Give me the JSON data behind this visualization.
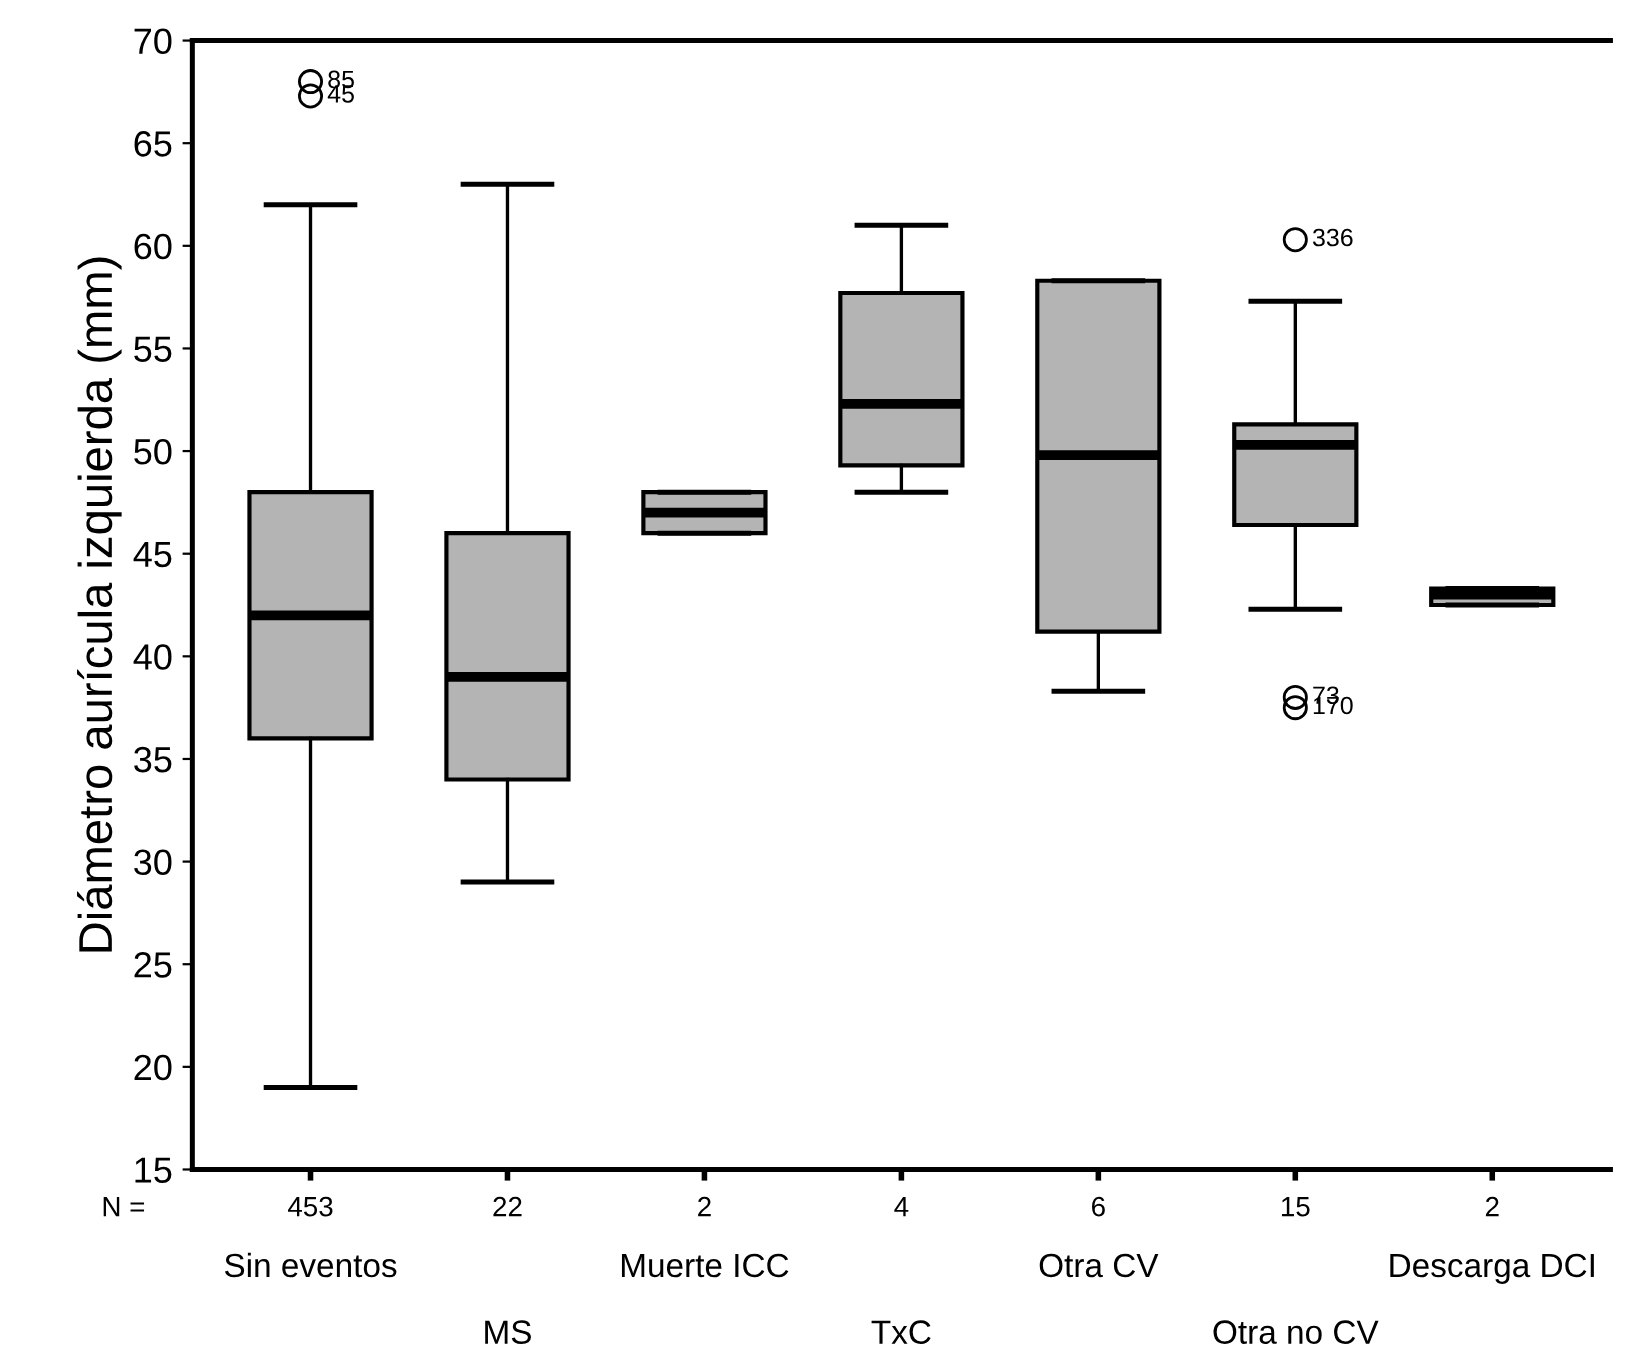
{
  "chart_data": {
    "type": "box",
    "ylabel": "Diámetro aurícula izquierda (mm)",
    "categories": [
      "Sin eventos",
      "MS",
      "Muerte ICC",
      "TxC",
      "Otra CV",
      "Otra no CV",
      "Descarga DCI"
    ],
    "boxes": [
      {
        "low": 19,
        "q1": 36,
        "median": 42,
        "q3": 48,
        "high": 62,
        "outliers": [
          68,
          67.3
        ]
      },
      {
        "low": 29,
        "q1": 34,
        "median": 39,
        "q3": 46,
        "high": 63
      },
      {
        "low": 46,
        "q1": 46,
        "median": 47,
        "q3": 48,
        "high": 48
      },
      {
        "low": 48,
        "q1": 49.3,
        "median": 52.3,
        "q3": 57.7,
        "high": 61
      },
      {
        "low": 38.3,
        "q1": 41.2,
        "median": 49.8,
        "q3": 58.3,
        "high": 58.3
      },
      {
        "low": 42.3,
        "q1": 46.4,
        "median": 50.3,
        "q3": 51.3,
        "high": 57.3,
        "outliers": [
          60.3,
          38,
          37.5
        ]
      },
      {
        "low": 42.5,
        "q1": 42.5,
        "median": 43,
        "q3": 43.3,
        "high": 43.3
      }
    ],
    "color": "#b4b4b4",
    "ylim": [
      15,
      70
    ],
    "yticks": [
      15,
      20,
      25,
      30,
      35,
      40,
      45,
      50,
      55,
      60,
      65,
      70
    ],
    "grid": false,
    "legend": false,
    "annotations": [
      "N =",
      "453",
      "22",
      "2",
      "4",
      "6",
      "15",
      "2",
      "85",
      "45",
      "336",
      "73",
      "170"
    ]
  }
}
